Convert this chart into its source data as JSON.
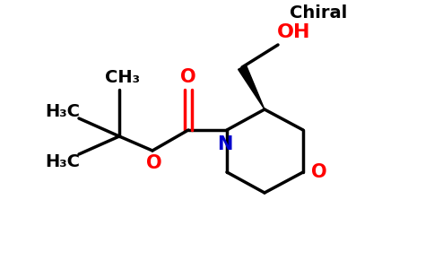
{
  "bg_color": "#ffffff",
  "bond_color": "#000000",
  "N_color": "#0000cd",
  "O_color": "#ff0000",
  "chiral_label": "Chiral",
  "OH_label": "OH",
  "O_ring_label": "O",
  "O_carbonyl_label": "O",
  "O_ester_label": "O",
  "N_label": "N",
  "CH3_label": "CH₃",
  "H3C_label1": "H₃C",
  "H3C_label2": "H₃C",
  "lw": 2.5,
  "fs": 14
}
